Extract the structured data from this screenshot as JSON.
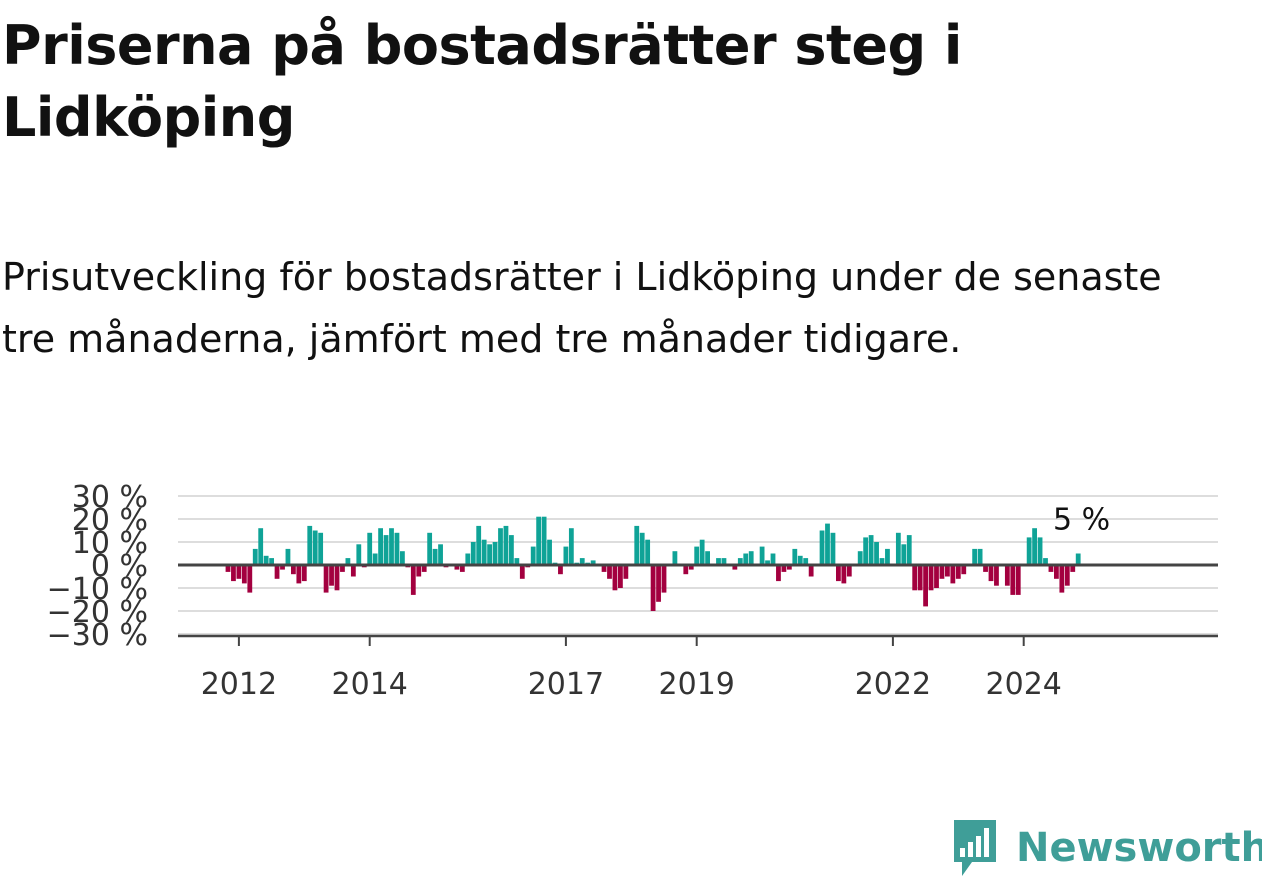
{
  "title": "Priserna på bostadsrätter steg i Lidköping",
  "subtitle": "Prisutveckling för bostadsrätter i Lidköping under de senaste tre månaderna, jämfört med tre månader tidigare.",
  "brand": {
    "name": "Newsworthy",
    "color": "#3f9e98",
    "icon": "newsworthy-logo-icon"
  },
  "colors": {
    "positive": "#0fa397",
    "negative": "#a3003f",
    "zero_line": "#444444",
    "grid": "#dddddd"
  },
  "chart_data": {
    "type": "bar",
    "start": "2011-11",
    "x_tick_labels": [
      "2012",
      "2014",
      "2017",
      "2019",
      "2022",
      "2024"
    ],
    "y_tick_labels": [
      "30 %",
      "20 %",
      "10 %",
      "0 %",
      "−10 %",
      "−20 %",
      "−30 %"
    ],
    "ylim": [
      -30,
      30
    ],
    "grid": true,
    "last_value_label": "5 %",
    "values": [
      -3,
      -7,
      -6,
      -8,
      -12,
      7,
      16,
      4,
      3,
      -6,
      -2,
      7,
      -4,
      -8,
      -7,
      17,
      15,
      14,
      -12,
      -9,
      -11,
      -3,
      3,
      -5,
      9,
      -1,
      14,
      5,
      16,
      13,
      16,
      14,
      6,
      -1,
      -13,
      -5,
      -3,
      14,
      7,
      9,
      -1,
      0,
      -2,
      -3,
      5,
      10,
      17,
      11,
      9,
      10,
      16,
      17,
      13,
      3,
      -6,
      -1,
      8,
      21,
      21,
      11,
      1,
      -4,
      8,
      16,
      1,
      3,
      1,
      2,
      0,
      -3,
      -6,
      -11,
      -10,
      -6,
      0,
      17,
      14,
      11,
      -20,
      -16,
      -12,
      0,
      6,
      0,
      -4,
      -2,
      8,
      11,
      6,
      0,
      3,
      3,
      0,
      -2,
      3,
      5,
      6,
      0,
      8,
      2,
      5,
      -7,
      -3,
      -2,
      7,
      4,
      3,
      -5,
      0,
      15,
      18,
      14,
      -7,
      -8,
      -5,
      0,
      6,
      12,
      13,
      10,
      3,
      7,
      0,
      14,
      9,
      13,
      -11,
      -11,
      -18,
      -11,
      -10,
      -6,
      -5,
      -8,
      -6,
      -4,
      0,
      7,
      7,
      -3,
      -7,
      -9,
      0,
      -9,
      -13,
      -13,
      0,
      12,
      16,
      12,
      3,
      -3,
      -6,
      -12,
      -9,
      -3,
      5
    ]
  }
}
